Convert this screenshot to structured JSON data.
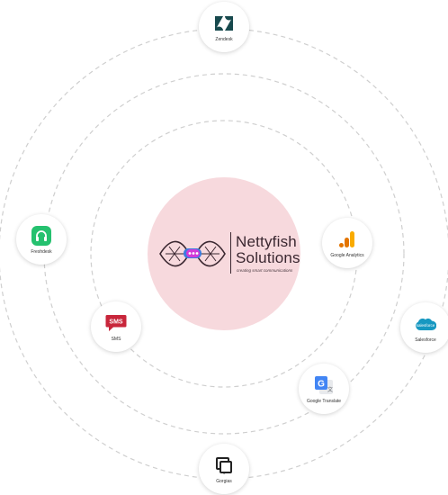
{
  "brand": {
    "name_line1": "Nettyfish",
    "name_line2": "Solutions",
    "tagline": "creating smart communications"
  },
  "integrations": [
    {
      "label": "Zendesk",
      "icon": "zendesk-icon"
    },
    {
      "label": "Freshdesk",
      "icon": "freshdesk-icon"
    },
    {
      "label": "Google Analytics",
      "icon": "google-analytics-icon"
    },
    {
      "label": "SMS",
      "icon": "sms-icon"
    },
    {
      "label": "Salesforce",
      "icon": "salesforce-icon"
    },
    {
      "label": "Google Translate",
      "icon": "google-translate-icon"
    },
    {
      "label": "Gorgias",
      "icon": "gorgias-icon"
    }
  ],
  "sms_icon_text": "SMS",
  "colors": {
    "center_bg": "#f7d9dd",
    "orbit": "#cfcfcf",
    "freshdesk": "#25c16f",
    "sms": "#c8263b",
    "salesforce": "#1798c1"
  }
}
